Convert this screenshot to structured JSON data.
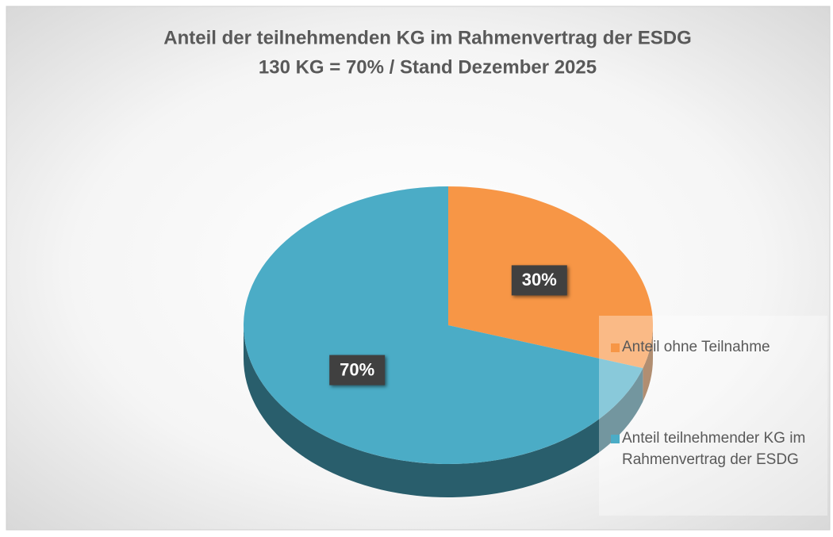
{
  "chart_data": {
    "type": "pie",
    "title": "Anteil der teilnehmenden KG im Rahmenvertrag der ESDG",
    "subtitle": "130 KG = 70% / Stand Dezember 2025",
    "categories": [
      "Anteil ohne Teilnahme",
      "Anteil teilnehmender KG im  Rahmenvertrag der ESDG"
    ],
    "values": [
      30,
      70
    ],
    "value_labels": [
      "30%",
      "70%"
    ],
    "colors": [
      "#f79646",
      "#4bacc6"
    ],
    "legend": "right"
  }
}
